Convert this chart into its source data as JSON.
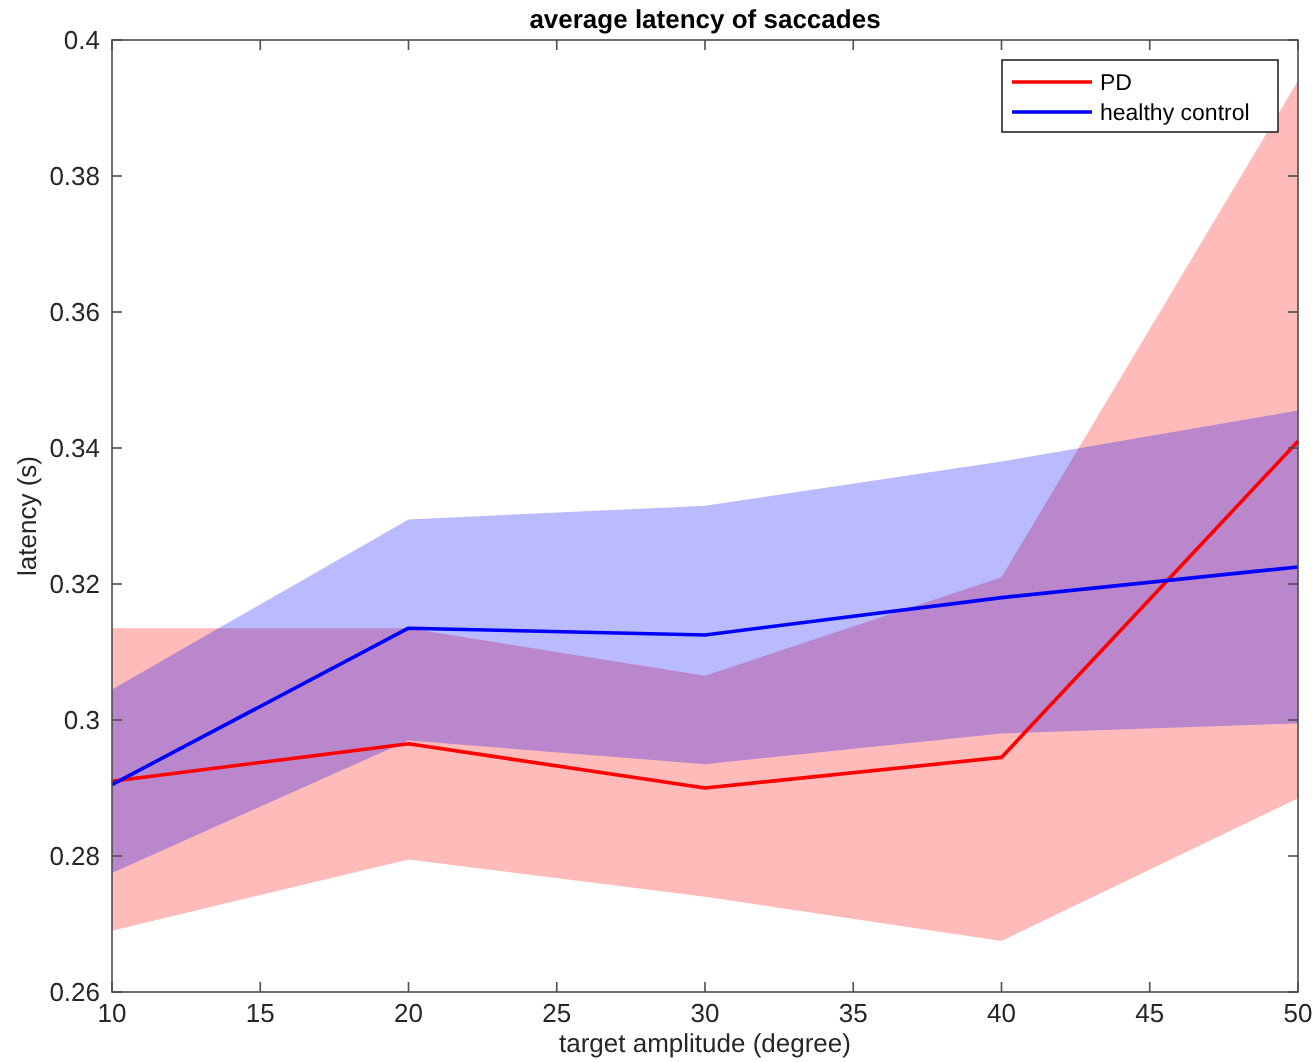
{
  "chart_data": {
    "type": "line",
    "title": "average latency of saccades",
    "xlabel": "target amplitude (degree)",
    "ylabel": "latency (s)",
    "x": [
      10,
      20,
      30,
      40,
      50
    ],
    "series": [
      {
        "name": "PD",
        "color": "#ff0000",
        "values": [
          0.291,
          0.2965,
          0.29,
          0.2945,
          0.341
        ],
        "lower": [
          0.269,
          0.2795,
          0.274,
          0.2675,
          0.2885
        ],
        "upper": [
          0.3135,
          0.3135,
          0.3065,
          0.321,
          0.394
        ]
      },
      {
        "name": "healthy control",
        "color": "#0000ff",
        "values": [
          0.2905,
          0.3135,
          0.3125,
          0.318,
          0.3225
        ],
        "lower": [
          0.2775,
          0.297,
          0.2935,
          0.298,
          0.2995
        ],
        "upper": [
          0.3045,
          0.3295,
          0.3315,
          0.338,
          0.3455
        ]
      }
    ],
    "xlim": [
      10,
      50
    ],
    "xticks": [
      10,
      15,
      20,
      25,
      30,
      35,
      40,
      45,
      50
    ],
    "ylim": [
      0.26,
      0.4
    ],
    "yticks": [
      0.26,
      0.28,
      {
        "value": 0.3,
        "label": "0.3"
      },
      0.32,
      0.34,
      0.36,
      0.38,
      {
        "value": 0.4,
        "label": "0.4"
      }
    ],
    "legend": "top right",
    "grid": false,
    "marker": "none",
    "line_style": "solid"
  }
}
